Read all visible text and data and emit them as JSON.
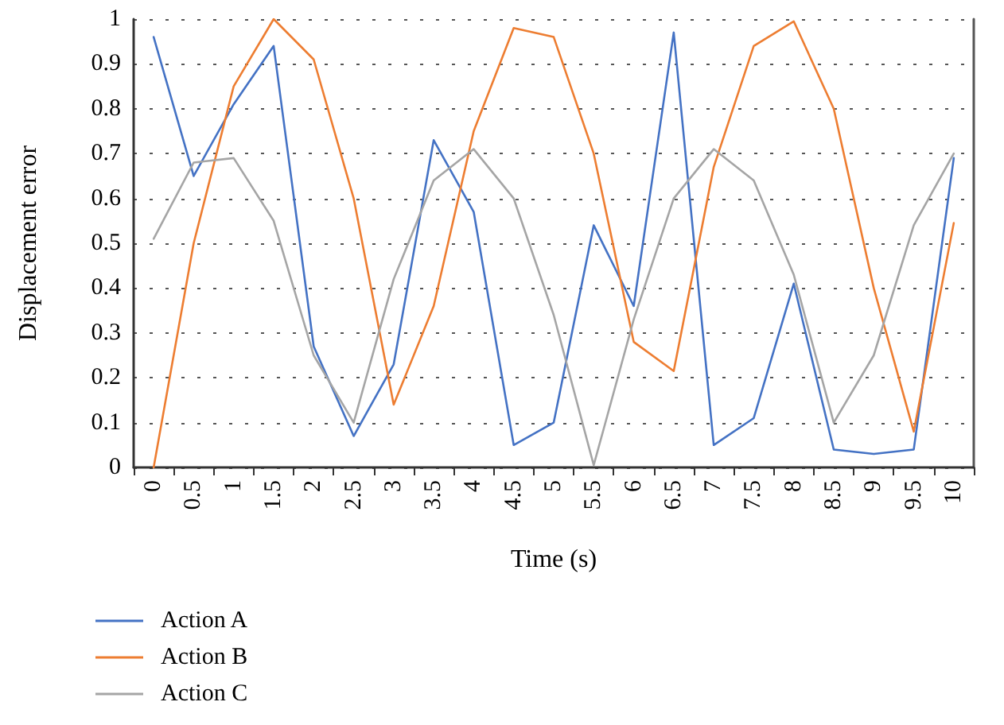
{
  "chart_data": {
    "type": "line",
    "xlabel": "Time (s)",
    "ylabel": "Displacement error",
    "categories": [
      "0",
      "0.5",
      "1",
      "1.5",
      "2",
      "2.5",
      "3",
      "3.5",
      "4",
      "4.5",
      "5",
      "5.5",
      "6",
      "6.5",
      "7",
      "7.5",
      "8",
      "8.5",
      "9",
      "9.5",
      "10"
    ],
    "series": [
      {
        "name": "Action A",
        "color": "#4472c4",
        "values": [
          0.96,
          0.65,
          0.81,
          0.94,
          0.27,
          0.07,
          0.23,
          0.73,
          0.57,
          0.05,
          0.1,
          0.54,
          0.36,
          0.97,
          0.05,
          0.11,
          0.41,
          0.04,
          0.03,
          0.04,
          0.69
        ]
      },
      {
        "name": "Action B",
        "color": "#ed7d31",
        "values": [
          0,
          0.5,
          0.85,
          1,
          0.91,
          0.6,
          0.14,
          0.36,
          0.75,
          0.98,
          0.96,
          0.7,
          0.28,
          0.215,
          0.67,
          0.94,
          0.995,
          0.8,
          0.4,
          0.08,
          0.545
        ]
      },
      {
        "name": "Action C",
        "color": "#a5a5a5",
        "values": [
          0.51,
          0.68,
          0.69,
          0.55,
          0.25,
          0.1,
          0.42,
          0.64,
          0.71,
          0.6,
          0.34,
          0.005,
          0.33,
          0.6,
          0.71,
          0.64,
          0.43,
          0.1,
          0.25,
          0.54,
          0.7
        ]
      }
    ],
    "ylim": [
      0,
      1
    ],
    "yticks": [
      0,
      0.1,
      0.2,
      0.3,
      0.4,
      0.5,
      0.6,
      0.7,
      0.8,
      0.9,
      1
    ],
    "grid": "y",
    "legend": "bottom left",
    "marker": "none",
    "line_style": "solid"
  }
}
